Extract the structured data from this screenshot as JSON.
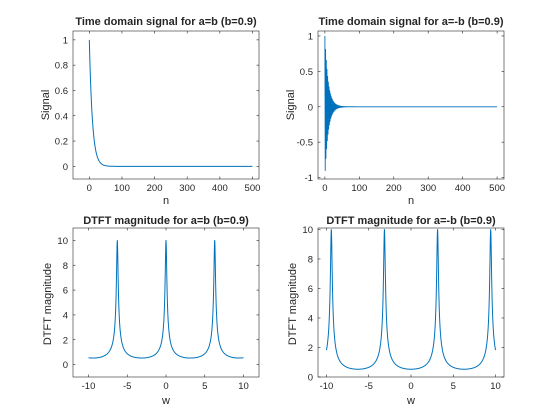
{
  "figure": {
    "background": "#ffffff",
    "line_color": "#0072BD",
    "axis_color": "#262626"
  },
  "chart_data": [
    {
      "type": "line",
      "title": "Time domain signal for a=b (b=0.9)",
      "xlabel": "n",
      "ylabel": "Signal",
      "xlim": [
        -50,
        520
      ],
      "ylim": [
        -0.1,
        1.07
      ],
      "xticks": [
        0,
        100,
        200,
        300,
        400,
        500
      ],
      "xtick_labels": [
        "0",
        "100",
        "200",
        "300",
        "400",
        "500"
      ],
      "yticks": [
        0,
        0.2,
        0.4,
        0.6,
        0.8,
        1
      ],
      "ytick_labels": [
        "0",
        "0.2",
        "0.4",
        "0.6",
        "0.8",
        "1"
      ],
      "series": [
        {
          "formula": "x[n] = 0.9^n",
          "n_range": [
            0,
            500
          ]
        }
      ]
    },
    {
      "type": "line",
      "title": "Time domain signal for a=-b (b=0.9)",
      "xlabel": "n",
      "ylabel": "Signal",
      "xlim": [
        -20,
        520
      ],
      "ylim": [
        -1.02,
        1.07
      ],
      "xticks": [
        0,
        100,
        200,
        300,
        400,
        500
      ],
      "xtick_labels": [
        "0",
        "100",
        "200",
        "300",
        "400",
        "500"
      ],
      "yticks": [
        -1,
        -0.5,
        0,
        0.5,
        1
      ],
      "ytick_labels": [
        "-1",
        "-0.5",
        "0",
        "0.5",
        "1"
      ],
      "series": [
        {
          "formula": "x[n] = (-0.9)^n",
          "n_range": [
            0,
            500
          ]
        }
      ]
    },
    {
      "type": "line",
      "title": "DTFT magnitude for a=b (b=0.9)",
      "xlabel": "w",
      "ylabel": "DTFT magnitude",
      "xlim": [
        -12,
        12
      ],
      "ylim": [
        -1,
        11
      ],
      "xticks": [
        -10,
        -5,
        0,
        5,
        10
      ],
      "xtick_labels": [
        "-10",
        "-5",
        "0",
        "5",
        "10"
      ],
      "yticks": [
        0,
        2,
        4,
        6,
        8,
        10
      ],
      "ytick_labels": [
        "0",
        "2",
        "4",
        "6",
        "8",
        "10"
      ],
      "series": [
        {
          "formula": "|X(w)| = 1 / |1 - 0.9 e^{-jw}|",
          "w_range": [
            -10,
            10
          ]
        }
      ]
    },
    {
      "type": "line",
      "title": "DTFT magnitude for a=-b (b=0.9)",
      "xlabel": "w",
      "ylabel": "DTFT magnitude",
      "xlim": [
        -11,
        11
      ],
      "ylim": [
        0,
        10.1
      ],
      "xticks": [
        -10,
        -5,
        0,
        5,
        10
      ],
      "xtick_labels": [
        "-10",
        "-5",
        "0",
        "5",
        "10"
      ],
      "yticks": [
        0,
        2,
        4,
        6,
        8,
        10
      ],
      "ytick_labels": [
        "0",
        "2",
        "4",
        "6",
        "8",
        "10"
      ],
      "series": [
        {
          "formula": "|X(w)| = 1 / |1 + 0.9 e^{-jw}|",
          "w_range": [
            -10,
            10
          ]
        }
      ]
    }
  ]
}
